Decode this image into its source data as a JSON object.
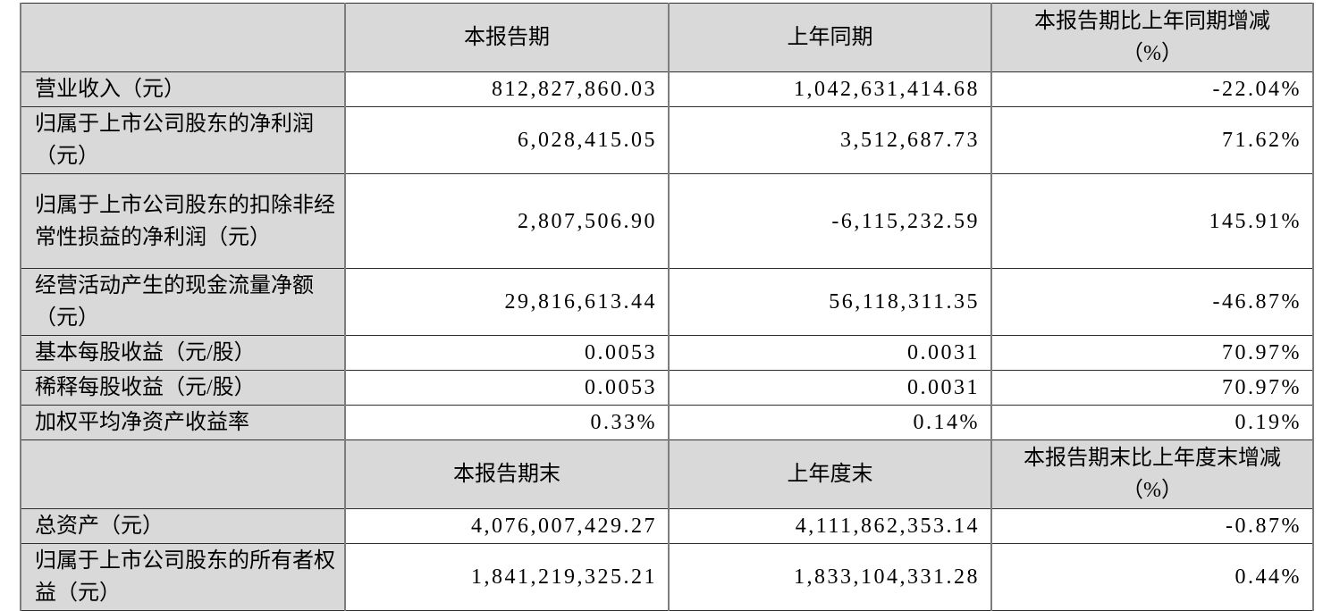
{
  "table": {
    "sections": [
      {
        "header": {
          "blank": "",
          "current_period": "本报告期",
          "prior_period": "上年同期",
          "change": "本报告期比上年同期增减\n（%）"
        },
        "rows": [
          {
            "label": "营业收入（元）",
            "current": "812,827,860.03",
            "prior": "1,042,631,414.68",
            "change": "-22.04%"
          },
          {
            "label": "归属于上市公司股东的净利润（元）",
            "current": "6,028,415.05",
            "prior": "3,512,687.73",
            "change": "71.62%"
          },
          {
            "label": "归属于上市公司股东的扣除非经常性损益的净利润（元）",
            "current": "2,807,506.90",
            "prior": "-6,115,232.59",
            "change": "145.91%"
          },
          {
            "label": "经营活动产生的现金流量净额（元）",
            "current": "29,816,613.44",
            "prior": "56,118,311.35",
            "change": "-46.87%"
          },
          {
            "label": "基本每股收益（元/股）",
            "current": "0.0053",
            "prior": "0.0031",
            "change": "70.97%"
          },
          {
            "label": "稀释每股收益（元/股）",
            "current": "0.0053",
            "prior": "0.0031",
            "change": "70.97%"
          },
          {
            "label": "加权平均净资产收益率",
            "current": "0.33%",
            "prior": "0.14%",
            "change": "0.19%"
          }
        ]
      },
      {
        "header": {
          "blank": "",
          "current_period": "本报告期末",
          "prior_period": "上年度末",
          "change": "本报告期末比上年度末增减\n（%）"
        },
        "rows": [
          {
            "label": "总资产（元）",
            "current": "4,076,007,429.27",
            "prior": "4,111,862,353.14",
            "change": "-0.87%"
          },
          {
            "label": "归属于上市公司股东的所有者权益（元）",
            "current": "1,841,219,325.21",
            "prior": "1,833,104,331.28",
            "change": "0.44%"
          }
        ]
      }
    ]
  }
}
